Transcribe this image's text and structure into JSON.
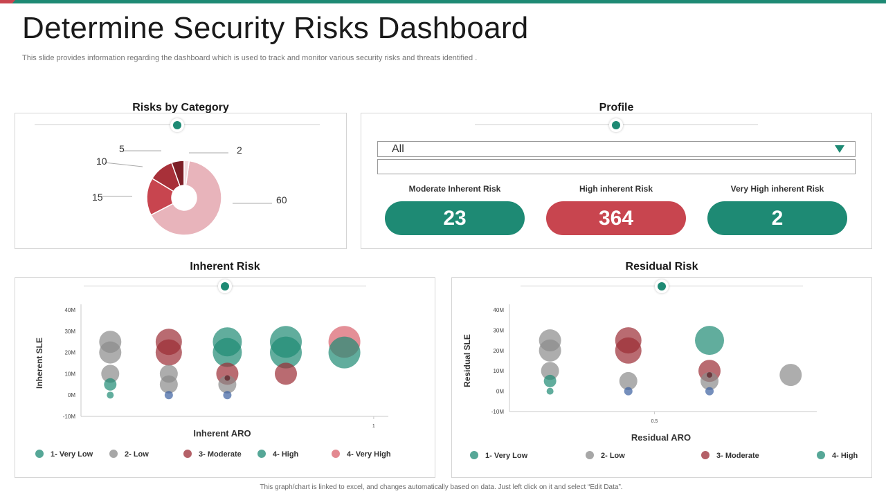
{
  "header": {
    "title": "Determine Security Risks Dashboard",
    "subtitle": "This slide provides information regarding the dashboard which is used to track and monitor various security risks and threats identified ."
  },
  "colors": {
    "teal": "#1e8a74",
    "red": "#c8454f",
    "dark_red": "#9b2c35",
    "pink": "#e8b4bb",
    "gray": "#999999",
    "blue": "#3a5fa0"
  },
  "sections": {
    "risks_by_category": "Risks by Category",
    "profile": "Profile",
    "inherent_risk": "Inherent Risk",
    "residual_risk": "Residual Risk"
  },
  "profile": {
    "select_value": "All",
    "kpis": [
      {
        "label": "Moderate Inherent Risk",
        "value": "23",
        "color": "#1e8a74"
      },
      {
        "label": "High  inherent Risk",
        "value": "364",
        "color": "#c8454f"
      },
      {
        "label": "Very High  inherent Risk",
        "value": "2",
        "color": "#1e8a74"
      }
    ]
  },
  "legend_labels": {
    "very_low": "1- Very Low",
    "low": "2- Low",
    "moderate": "3- Moderate",
    "high": "4- High",
    "very_high": "4- Very High"
  },
  "footer": "This graph/chart is linked to excel, and changes automatically based on data. Just left click on it and select “Edit Data”.",
  "chart_data": [
    {
      "type": "pie",
      "title": "Risks by Category",
      "slices": [
        {
          "value": 60,
          "label": "60",
          "color": "#e8b4bb"
        },
        {
          "value": 15,
          "label": "15",
          "color": "#c8454f"
        },
        {
          "value": 10,
          "label": "10",
          "color": "#a83039"
        },
        {
          "value": 5,
          "label": "5",
          "color": "#7d1f27"
        },
        {
          "value": 2,
          "label": "2",
          "color": "#f3dde0"
        }
      ]
    },
    {
      "type": "scatter",
      "title": "Inherent Risk",
      "xlabel": "Inherent ARO",
      "ylabel": "Inherent SLE",
      "yticks": [
        "40M",
        "30M",
        "20M",
        "10M",
        "0M",
        "-10M"
      ],
      "ylim": [
        -10,
        40
      ],
      "xlim": [
        0,
        1.05
      ],
      "xticks": [
        {
          "value": 1,
          "label": "1"
        }
      ],
      "points": [
        {
          "x": 0.1,
          "y": 25,
          "r": 16,
          "cat": "low"
        },
        {
          "x": 0.1,
          "y": 20,
          "r": 16,
          "cat": "low"
        },
        {
          "x": 0.1,
          "y": 10,
          "r": 13,
          "cat": "low"
        },
        {
          "x": 0.1,
          "y": 5,
          "r": 9,
          "cat": "very_low"
        },
        {
          "x": 0.1,
          "y": 0,
          "r": 5,
          "cat": "very_low"
        },
        {
          "x": 0.3,
          "y": 25,
          "r": 19,
          "cat": "moderate"
        },
        {
          "x": 0.3,
          "y": 20,
          "r": 19,
          "cat": "moderate"
        },
        {
          "x": 0.3,
          "y": 10,
          "r": 13,
          "cat": "low"
        },
        {
          "x": 0.3,
          "y": 5,
          "r": 13,
          "cat": "low"
        },
        {
          "x": 0.3,
          "y": 0,
          "r": 6,
          "cat": "blue"
        },
        {
          "x": 0.5,
          "y": 25,
          "r": 21,
          "cat": "high"
        },
        {
          "x": 0.5,
          "y": 20,
          "r": 21,
          "cat": "high"
        },
        {
          "x": 0.5,
          "y": 10,
          "r": 16,
          "cat": "moderate"
        },
        {
          "x": 0.5,
          "y": 5,
          "r": 13,
          "cat": "low"
        },
        {
          "x": 0.5,
          "y": 8,
          "r": 4,
          "cat": "dark"
        },
        {
          "x": 0.5,
          "y": 0,
          "r": 6,
          "cat": "blue"
        },
        {
          "x": 0.7,
          "y": 25,
          "r": 23,
          "cat": "high"
        },
        {
          "x": 0.7,
          "y": 20,
          "r": 23,
          "cat": "high"
        },
        {
          "x": 0.7,
          "y": 10,
          "r": 16,
          "cat": "moderate"
        },
        {
          "x": 0.9,
          "y": 25,
          "r": 23,
          "cat": "very_high"
        },
        {
          "x": 0.9,
          "y": 20,
          "r": 23,
          "cat": "high"
        }
      ]
    },
    {
      "type": "scatter",
      "title": "Residual Risk",
      "xlabel": "Residual ARO",
      "ylabel": "Residual  SLE",
      "yticks": [
        "40M",
        "30M",
        "20M",
        "10M",
        "0M",
        "-10M"
      ],
      "ylim": [
        -10,
        40
      ],
      "xlim": [
        0,
        1.06
      ],
      "xticks": [
        {
          "value": 0.5,
          "label": "0.5"
        }
      ],
      "points": [
        {
          "x": 0.14,
          "y": 25,
          "r": 16,
          "cat": "low"
        },
        {
          "x": 0.14,
          "y": 20,
          "r": 16,
          "cat": "low"
        },
        {
          "x": 0.14,
          "y": 10,
          "r": 13,
          "cat": "low"
        },
        {
          "x": 0.14,
          "y": 5,
          "r": 9,
          "cat": "very_low"
        },
        {
          "x": 0.14,
          "y": 0,
          "r": 5,
          "cat": "very_low"
        },
        {
          "x": 0.41,
          "y": 25,
          "r": 19,
          "cat": "moderate"
        },
        {
          "x": 0.41,
          "y": 20,
          "r": 19,
          "cat": "moderate"
        },
        {
          "x": 0.41,
          "y": 5,
          "r": 13,
          "cat": "low"
        },
        {
          "x": 0.41,
          "y": 0,
          "r": 6,
          "cat": "blue"
        },
        {
          "x": 0.69,
          "y": 25,
          "r": 21,
          "cat": "high"
        },
        {
          "x": 0.69,
          "y": 10,
          "r": 16,
          "cat": "moderate"
        },
        {
          "x": 0.69,
          "y": 5,
          "r": 13,
          "cat": "low"
        },
        {
          "x": 0.69,
          "y": 8,
          "r": 4,
          "cat": "dark"
        },
        {
          "x": 0.69,
          "y": 0,
          "r": 6,
          "cat": "blue"
        },
        {
          "x": 0.97,
          "y": 8,
          "r": 16,
          "cat": "low"
        }
      ]
    }
  ]
}
